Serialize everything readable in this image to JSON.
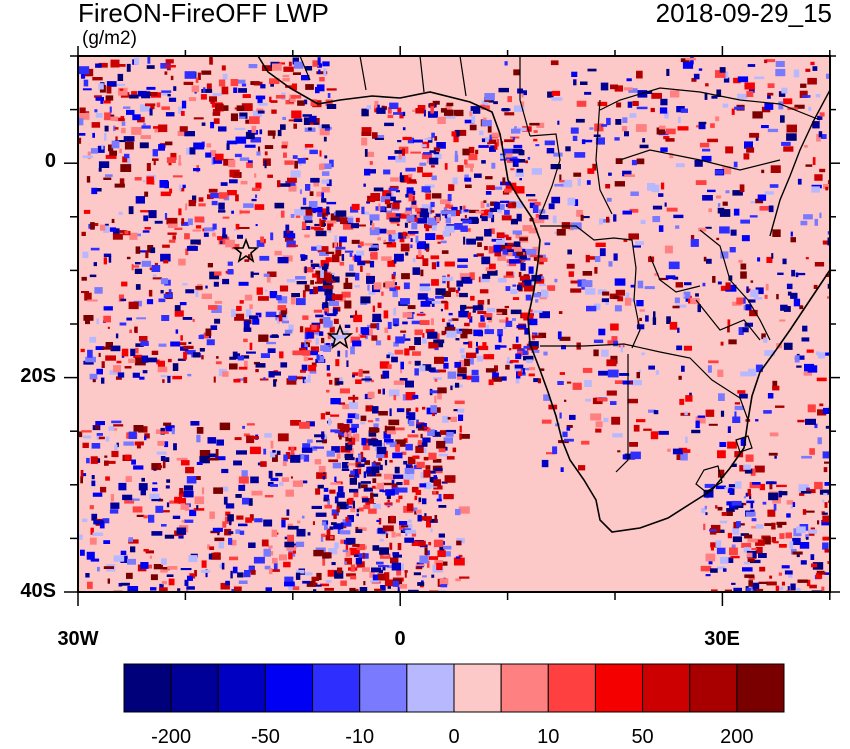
{
  "header": {
    "title": "FireON-FireOFF LWP",
    "units": "(g/m2)",
    "datetime": "2018-09-29_15"
  },
  "axes": {
    "lat_labels": [
      "0",
      "20S",
      "40S"
    ],
    "lon_labels": [
      "30W",
      "0",
      "30E"
    ]
  },
  "colorbar": {
    "colors": [
      "#00007a",
      "#000099",
      "#0000c2",
      "#0000f5",
      "#2e2eff",
      "#7a7aff",
      "#b8b8ff",
      "#fcc8c8",
      "#ff8080",
      "#ff4040",
      "#f50000",
      "#cc0000",
      "#a80000",
      "#7a0000"
    ],
    "labels": [
      "-200",
      "-50",
      "-10",
      "0",
      "10",
      "50",
      "200"
    ]
  },
  "colors": {
    "background_field": "#fcc8c8",
    "coastline": "#000000"
  }
}
